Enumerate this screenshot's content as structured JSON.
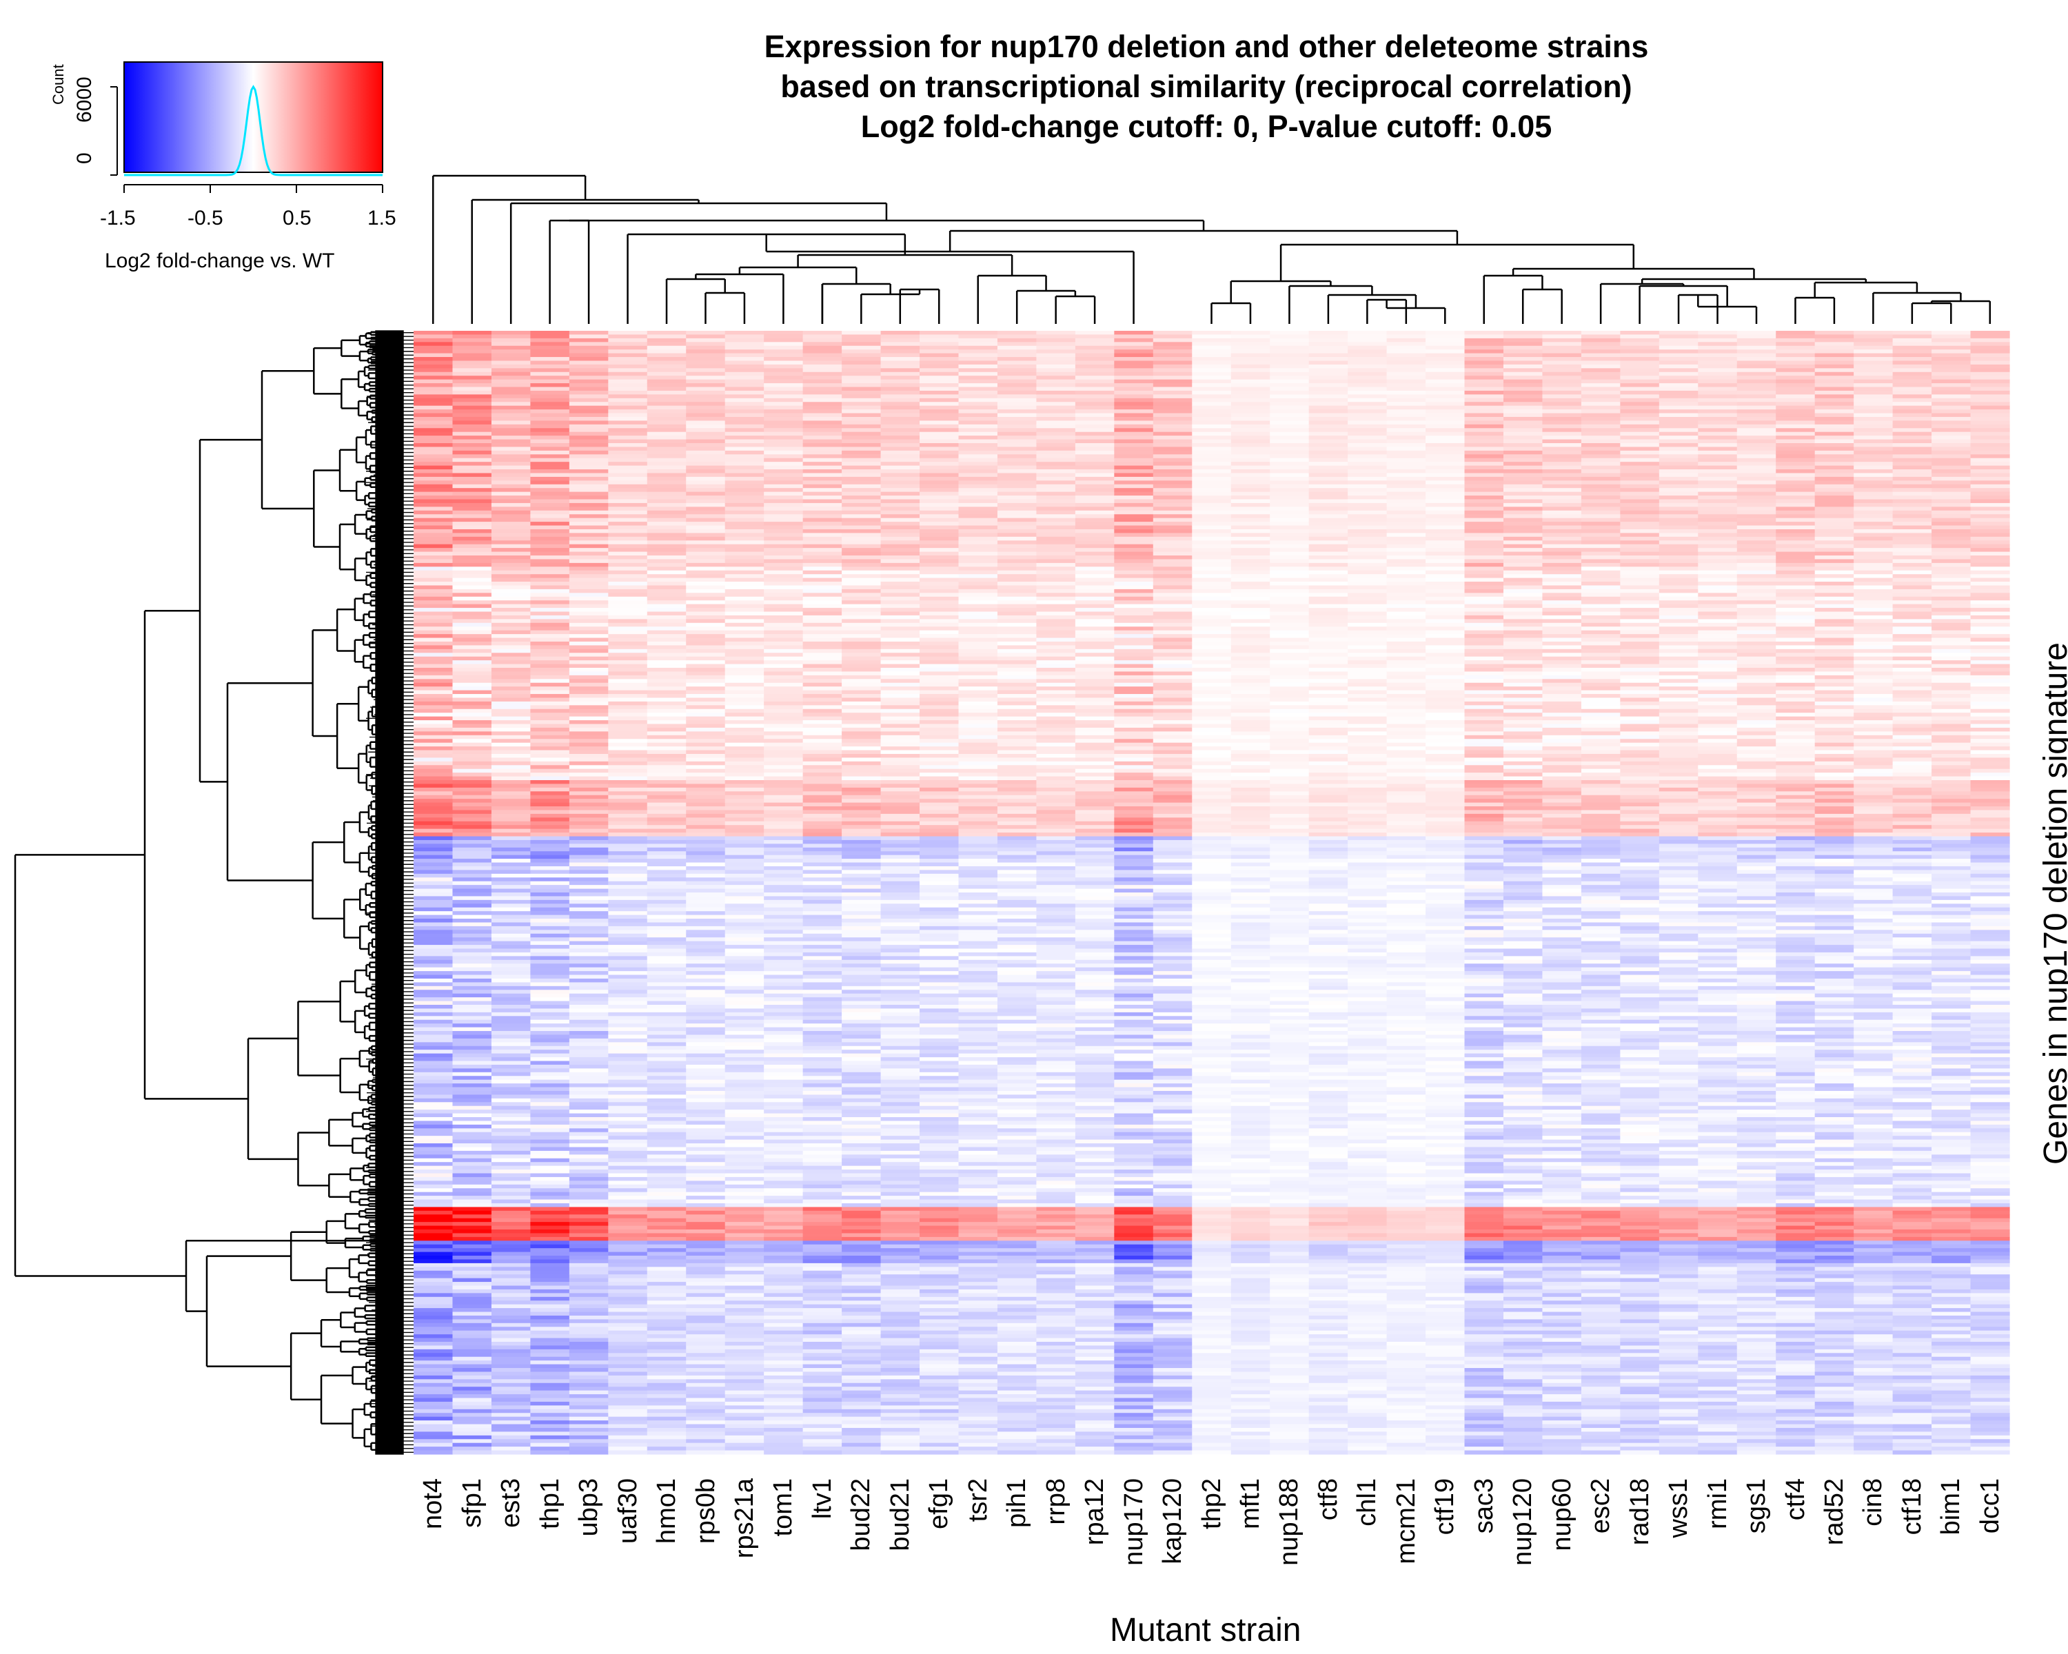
{
  "chart_data": {
    "type": "heatmap",
    "title": [
      "Expression for nup170 deletion and other deleteome strains",
      "based on transcriptional similarity (reciprocal correlation)",
      "Log2 fold-change cutoff: 0, P-value cutoff: 0.05"
    ],
    "xlabel": "Mutant strain",
    "ylabel": "Genes in nup170 deletion signature",
    "columns": [
      "not4",
      "sfp1",
      "est3",
      "thp1",
      "ubp3",
      "uaf30",
      "hmo1",
      "rps0b",
      "rps21a",
      "tom1",
      "ltv1",
      "bud22",
      "bud21",
      "efg1",
      "tsr2",
      "pih1",
      "rrp8",
      "rpa12",
      "nup170",
      "kap120",
      "thp2",
      "mft1",
      "nup188",
      "ctf8",
      "chl1",
      "mcm21",
      "ctf19",
      "sac3",
      "nup120",
      "nup60",
      "esc2",
      "rad18",
      "wss1",
      "rmi1",
      "sgs1",
      "ctf4",
      "rad52",
      "cin8",
      "ctf18",
      "bim1",
      "dcc1"
    ],
    "row_dendrogram": "dense hierarchical clustering of several hundred genes",
    "column_dendrogram": true,
    "color_scale": {
      "min": -1.5,
      "max": 1.5,
      "low_color": "#0000ff",
      "mid_color": "#ffffff",
      "high_color": "#ff0000"
    },
    "color_key": {
      "xlabel": "Log2 fold-change vs. WT",
      "ylabel": "Count",
      "x_ticks": [
        "-1.5",
        "-0.5",
        "0.5",
        "1.5"
      ],
      "y_ticks": [
        "0",
        "6000"
      ],
      "histogram_color": "#00ffff",
      "histogram_peak_x": 0.0,
      "histogram_peak_count": 6000
    }
  }
}
